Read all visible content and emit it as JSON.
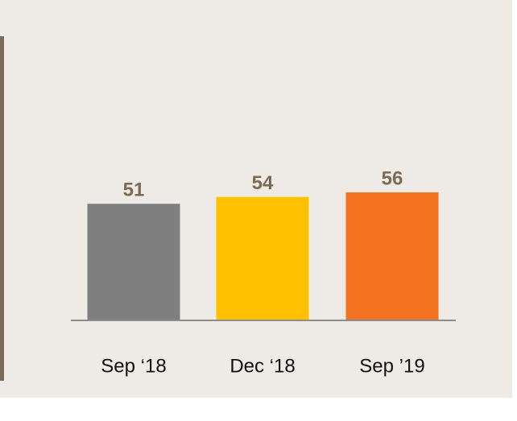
{
  "chart_data": {
    "type": "bar",
    "categories": [
      "Sep ‘18",
      "Dec ‘18",
      "Sep ’19"
    ],
    "values": [
      51,
      54,
      56
    ],
    "colors": [
      "#7f7f7f",
      "#ffc000",
      "#f47321"
    ],
    "ylim": [
      0,
      100
    ]
  }
}
